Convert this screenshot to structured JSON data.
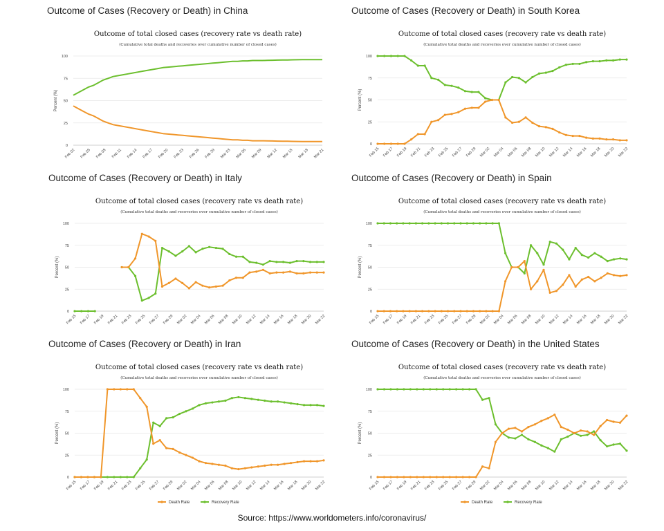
{
  "colors": {
    "death": "#f0962a",
    "recovery": "#6cbf2e",
    "grid": "#e6e6e6",
    "axis": "#cfcfcf"
  },
  "source": "Source: https://www.worldometers.info/coronavirus/",
  "panels": [
    {
      "heading": "Outcome of Cases (Recovery or Death) in China",
      "title": "Outcome of total closed cases (recovery rate vs death rate)",
      "subtitle": "(Cumulative total deaths and recoveries over cumulative number of closed cases)",
      "legend": [],
      "chart_data": {
        "type": "line",
        "ylabel": "Percent (%)",
        "ylim": [
          0,
          100
        ],
        "yticks": [
          "0",
          "25",
          "50",
          "75",
          "100"
        ],
        "xtick_labels": [
          "Feb 02",
          "Feb 05",
          "Feb 08",
          "Feb 11",
          "Feb 14",
          "Feb 17",
          "Feb 20",
          "Feb 23",
          "Feb 26",
          "Feb 29",
          "Mar 03",
          "Mar 06",
          "Mar 09",
          "Mar 12",
          "Mar 15",
          "Mar 18",
          "Mar 21"
        ],
        "show_markers": false,
        "series": [
          {
            "role": "recovery",
            "values": [
              56,
              59,
              62,
              65,
              67,
              70,
              73,
              75,
              77,
              78,
              79,
              80,
              81,
              82,
              83,
              84,
              85,
              86,
              87,
              87.5,
              88,
              88.5,
              89,
              89.5,
              90,
              90.5,
              91,
              91.5,
              92,
              92.5,
              93,
              93.5,
              94,
              94,
              94.5,
              94.5,
              95,
              95,
              95,
              95.2,
              95.3,
              95.4,
              95.5,
              95.6,
              95.7,
              95.8,
              95.9,
              96,
              96,
              96,
              96
            ]
          },
          {
            "role": "death",
            "values": [
              44,
              41,
              38,
              35,
              33,
              30,
              27,
              25,
              23,
              22,
              21,
              20,
              19,
              18,
              17,
              16,
              15,
              14,
              13,
              12.5,
              12,
              11.5,
              11,
              10.5,
              10,
              9.5,
              9,
              8.5,
              8,
              7.5,
              7,
              6.5,
              6,
              6,
              5.5,
              5.5,
              5,
              5,
              5,
              4.8,
              4.7,
              4.6,
              4.5,
              4.4,
              4.3,
              4.2,
              4.1,
              4,
              4,
              4,
              4
            ]
          }
        ]
      }
    },
    {
      "heading": "Outcome of Cases (Recovery or Death) in South Korea",
      "title": "Outcome of total closed cases (recovery rate vs death rate)",
      "subtitle": "(Cumulative total deaths and recoveries over cumulative number of closed cases)",
      "legend": [],
      "chart_data": {
        "type": "line",
        "ylabel": "Percent (%)",
        "ylim": [
          0,
          100
        ],
        "yticks": [
          "0",
          "25",
          "50",
          "75",
          "100"
        ],
        "xtick_labels": [
          "Feb 15",
          "Feb 17",
          "Feb 19",
          "Feb 21",
          "Feb 23",
          "Feb 25",
          "Feb 27",
          "Feb 29",
          "Mar 02",
          "Mar 04",
          "Mar 06",
          "Mar 08",
          "Mar 10",
          "Mar 12",
          "Mar 14",
          "Mar 16",
          "Mar 18",
          "Mar 20",
          "Mar 22"
        ],
        "show_markers": true,
        "series": [
          {
            "role": "recovery",
            "values": [
              100,
              100,
              100,
              100,
              100,
              95,
              89,
              89,
              75,
              73,
              67,
              66,
              64,
              60,
              59,
              59,
              52,
              50,
              50,
              70,
              76,
              75,
              70,
              76,
              80,
              81,
              83,
              87,
              90,
              91,
              91,
              93,
              94,
              94,
              95,
              95,
              96,
              96
            ]
          },
          {
            "role": "death",
            "values": [
              0,
              0,
              0,
              0,
              0,
              5,
              11,
              11,
              25,
              27,
              33,
              34,
              36,
              40,
              41,
              41,
              48,
              50,
              50,
              30,
              24,
              25,
              30,
              24,
              20,
              19,
              17,
              13,
              10,
              9,
              9,
              7,
              6,
              6,
              5,
              5,
              4,
              4
            ]
          }
        ]
      }
    },
    {
      "heading": "Outcome of Cases (Recovery or Death) in Italy",
      "title": "Outcome of total closed cases (recovery rate vs death rate)",
      "subtitle": "(Cumulative total deaths and recoveries over cumulative number of closed cases)",
      "legend": [],
      "chart_data": {
        "type": "line",
        "ylabel": "Percent (%)",
        "ylim": [
          0,
          100
        ],
        "yticks": [
          "0",
          "25",
          "50",
          "75",
          "100"
        ],
        "xtick_labels": [
          "Feb 15",
          "Feb 17",
          "Feb 19",
          "Feb 21",
          "Feb 23",
          "Feb 25",
          "Feb 27",
          "Feb 29",
          "Mar 02",
          "Mar 04",
          "Mar 06",
          "Mar 08",
          "Mar 10",
          "Mar 12",
          "Mar 14",
          "Mar 16",
          "Mar 18",
          "Mar 20",
          "Mar 22"
        ],
        "show_markers": true,
        "series": [
          {
            "role": "recovery",
            "values": [
              0,
              0,
              0,
              0,
              null,
              null,
              null,
              50,
              50,
              40,
              12,
              15,
              20,
              72,
              68,
              63,
              68,
              74,
              67,
              71,
              73,
              72,
              71,
              65,
              62,
              62,
              56,
              55,
              53,
              57,
              56,
              56,
              55,
              57,
              57,
              56,
              56,
              56
            ]
          },
          {
            "role": "death",
            "values": [
              null,
              null,
              null,
              null,
              null,
              null,
              null,
              50,
              50,
              60,
              88,
              85,
              80,
              28,
              32,
              37,
              32,
              26,
              33,
              29,
              27,
              28,
              29,
              35,
              38,
              38,
              44,
              45,
              47,
              43,
              44,
              44,
              45,
              43,
              43,
              44,
              44,
              44
            ]
          }
        ]
      }
    },
    {
      "heading": "Outcome of Cases (Recovery or Death) in Spain",
      "title": "Outcome of total closed cases (recovery rate vs death rate)",
      "subtitle": "(Cumulative total deaths and recoveries over cumulative number of closed cases)",
      "legend": [],
      "chart_data": {
        "type": "line",
        "ylabel": "Percent (%)",
        "ylim": [
          0,
          100
        ],
        "yticks": [
          "0",
          "25",
          "50",
          "75",
          "100"
        ],
        "xtick_labels": [
          "Feb 15",
          "Feb 17",
          "Feb 19",
          "Feb 21",
          "Feb 23",
          "Feb 25",
          "Feb 27",
          "Feb 29",
          "Mar 02",
          "Mar 04",
          "Mar 06",
          "Mar 08",
          "Mar 10",
          "Mar 12",
          "Mar 14",
          "Mar 16",
          "Mar 18",
          "Mar 20",
          "Mar 22"
        ],
        "show_markers": true,
        "series": [
          {
            "role": "recovery",
            "values": [
              100,
              100,
              100,
              100,
              100,
              100,
              100,
              100,
              100,
              100,
              100,
              100,
              100,
              100,
              100,
              100,
              100,
              100,
              100,
              100,
              66,
              50,
              50,
              43,
              75,
              66,
              53,
              79,
              77,
              70,
              59,
              72,
              64,
              61,
              66,
              62,
              57,
              59,
              60,
              59
            ]
          },
          {
            "role": "death",
            "values": [
              0,
              0,
              0,
              0,
              0,
              0,
              0,
              0,
              0,
              0,
              0,
              0,
              0,
              0,
              0,
              0,
              0,
              0,
              0,
              0,
              34,
              50,
              50,
              57,
              25,
              34,
              47,
              21,
              23,
              30,
              41,
              28,
              36,
              39,
              34,
              38,
              43,
              41,
              40,
              41
            ]
          }
        ]
      }
    },
    {
      "heading": "Outcome of Cases (Recovery or Death) in Iran",
      "title": "Outcome of total closed cases (recovery rate vs death rate)",
      "subtitle": "(Cumulative total deaths and recoveries over cumulative number of closed cases)",
      "legend": [
        {
          "label": "Death Rate",
          "role": "death"
        },
        {
          "label": "Recovery Rate",
          "role": "recovery"
        }
      ],
      "chart_data": {
        "type": "line",
        "ylabel": "Percent (%)",
        "ylim": [
          0,
          100
        ],
        "yticks": [
          "0",
          "25",
          "50",
          "75",
          "100"
        ],
        "xtick_labels": [
          "Feb 15",
          "Feb 17",
          "Feb 19",
          "Feb 21",
          "Feb 23",
          "Feb 25",
          "Feb 27",
          "Feb 29",
          "Mar 02",
          "Mar 04",
          "Mar 06",
          "Mar 08",
          "Mar 10",
          "Mar 12",
          "Mar 14",
          "Mar 16",
          "Mar 18",
          "Mar 20",
          "Mar 22"
        ],
        "show_markers": true,
        "series": [
          {
            "role": "recovery",
            "values": [
              0,
              0,
              0,
              0,
              0,
              0,
              0,
              0,
              0,
              0,
              10,
              20,
              62,
              58,
              67,
              68,
              72,
              75,
              78,
              82,
              84,
              85,
              86,
              87,
              90,
              91,
              90,
              89,
              88,
              87,
              86,
              86,
              85,
              84,
              83,
              82,
              82,
              82,
              81
            ]
          },
          {
            "role": "death",
            "values": [
              0,
              0,
              0,
              0,
              0,
              100,
              100,
              100,
              100,
              100,
              90,
              80,
              38,
              42,
              33,
              32,
              28,
              25,
              22,
              18,
              16,
              15,
              14,
              13,
              10,
              9,
              10,
              11,
              12,
              13,
              14,
              14,
              15,
              16,
              17,
              18,
              18,
              18,
              19
            ]
          }
        ]
      }
    },
    {
      "heading": "Outcome of Cases (Recovery or Death) in the United States",
      "title": "Outcome of total closed cases (recovery rate vs death rate)",
      "subtitle": "(Cumulative total deaths and recoveries over cumulative number of closed cases)",
      "legend": [
        {
          "label": "Death Rate",
          "role": "death"
        },
        {
          "label": "Recovery Rate",
          "role": "recovery"
        }
      ],
      "chart_data": {
        "type": "line",
        "ylabel": "Percent (%)",
        "ylim": [
          0,
          100
        ],
        "yticks": [
          "0",
          "25",
          "50",
          "75",
          "100"
        ],
        "xtick_labels": [
          "Feb 15",
          "Feb 17",
          "Feb 19",
          "Feb 21",
          "Feb 23",
          "Feb 25",
          "Feb 27",
          "Feb 29",
          "Mar 02",
          "Mar 04",
          "Mar 06",
          "Mar 08",
          "Mar 10",
          "Mar 12",
          "Mar 14",
          "Mar 16",
          "Mar 18",
          "Mar 20",
          "Mar 22"
        ],
        "show_markers": true,
        "series": [
          {
            "role": "recovery",
            "values": [
              100,
              100,
              100,
              100,
              100,
              100,
              100,
              100,
              100,
              100,
              100,
              100,
              100,
              100,
              100,
              100,
              88,
              90,
              60,
              50,
              45,
              44,
              48,
              43,
              40,
              36,
              33,
              29,
              43,
              46,
              50,
              47,
              48,
              52,
              42,
              35,
              37,
              38,
              30
            ]
          },
          {
            "role": "death",
            "values": [
              0,
              0,
              0,
              0,
              0,
              0,
              0,
              0,
              0,
              0,
              0,
              0,
              0,
              0,
              0,
              0,
              12,
              10,
              40,
              50,
              55,
              56,
              52,
              57,
              60,
              64,
              67,
              71,
              57,
              54,
              50,
              53,
              52,
              48,
              58,
              65,
              63,
              62,
              70
            ]
          }
        ]
      }
    }
  ]
}
